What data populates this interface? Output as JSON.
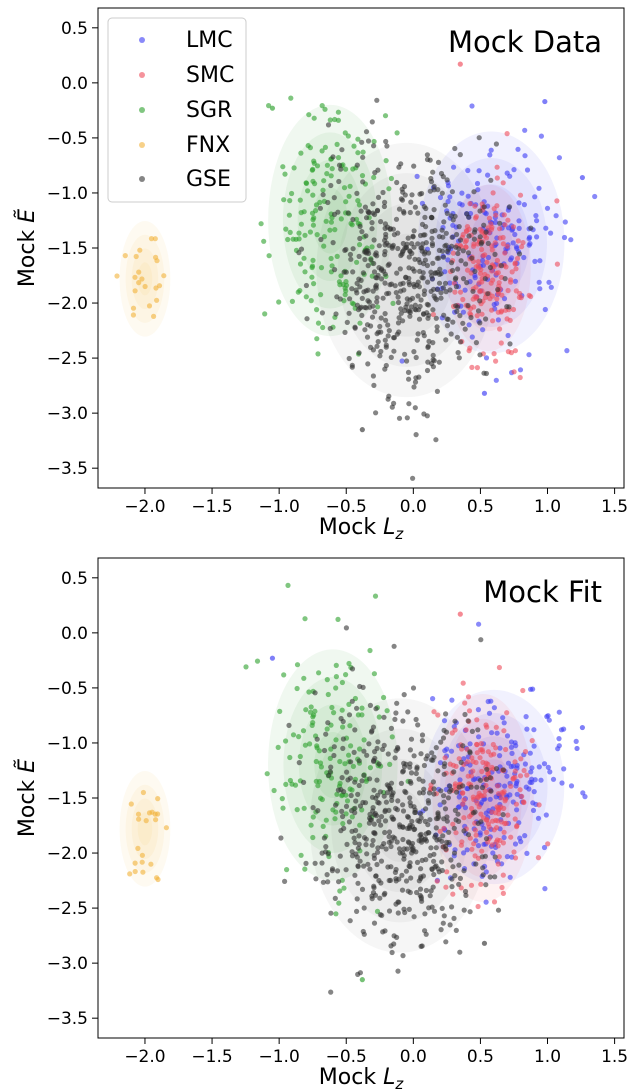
{
  "chart_data": [
    {
      "type": "scatter",
      "title": "Mock Data",
      "xlabel": "Mock L_z",
      "ylabel": "Mock Ẽ",
      "xlim": [
        -2.35,
        1.57
      ],
      "ylim": [
        -3.68,
        0.68
      ],
      "xticks": [
        "−2.0",
        "−1.5",
        "−1.0",
        "−0.5",
        "0.0",
        "0.5",
        "1.0",
        "1.5"
      ],
      "xtick_values": [
        -2.0,
        -1.5,
        -1.0,
        -0.5,
        0.0,
        0.5,
        1.0,
        1.5
      ],
      "yticks": [
        "0.5",
        "0.0",
        "−0.5",
        "−1.0",
        "−1.5",
        "−2.0",
        "−2.5",
        "−3.0",
        "−3.5"
      ],
      "ytick_values": [
        0.5,
        0.0,
        -0.5,
        -1.0,
        -1.5,
        -2.0,
        -2.5,
        -3.0,
        -3.5
      ],
      "legend_position": "top-left",
      "series": [
        {
          "name": "LMC",
          "color": "#3b3bf5",
          "center": [
            0.58,
            -1.45
          ],
          "spread": [
            0.26,
            0.48
          ],
          "count": 170
        },
        {
          "name": "SMC",
          "color": "#ef4b5a",
          "center": [
            0.56,
            -1.68
          ],
          "spread": [
            0.15,
            0.36
          ],
          "count": 180
        },
        {
          "name": "SGR",
          "color": "#2ca02c",
          "center": [
            -0.62,
            -1.25
          ],
          "spread": [
            0.22,
            0.5
          ],
          "count": 170
        },
        {
          "name": "FNX",
          "color": "#f2b23a",
          "center": [
            -2.0,
            -1.78
          ],
          "spread": [
            0.09,
            0.25
          ],
          "count": 22
        },
        {
          "name": "GSE",
          "color": "#333333",
          "center": [
            -0.05,
            -1.7
          ],
          "spread": [
            0.32,
            0.55
          ],
          "count": 520
        }
      ],
      "highlight_points": [
        [
          0.35,
          0.17
        ],
        [
          0.98,
          -0.17
        ],
        [
          1.26,
          -0.86
        ],
        [
          -1.05,
          -0.23
        ],
        [
          -0.38,
          -3.15
        ],
        [
          0.53,
          -2.82
        ]
      ]
    },
    {
      "type": "scatter",
      "title": "Mock Fit",
      "xlabel": "Mock L_z",
      "ylabel": "Mock Ẽ",
      "xlim": [
        -2.35,
        1.57
      ],
      "ylim": [
        -3.68,
        0.68
      ],
      "xticks": [
        "−2.0",
        "−1.5",
        "−1.0",
        "−0.5",
        "0.0",
        "0.5",
        "1.0",
        "1.5"
      ],
      "xtick_values": [
        -2.0,
        -1.5,
        -1.0,
        -0.5,
        0.0,
        0.5,
        1.0,
        1.5
      ],
      "yticks": [
        "0.5",
        "0.0",
        "−0.5",
        "−1.0",
        "−1.5",
        "−2.0",
        "−2.5",
        "−3.0",
        "−3.5"
      ],
      "ytick_values": [
        0.5,
        0.0,
        -0.5,
        -1.0,
        -1.5,
        -2.0,
        -2.5,
        -3.0,
        -3.5
      ],
      "series": [
        {
          "name": "LMC",
          "color": "#3b3bf5",
          "center": [
            0.6,
            -1.4
          ],
          "spread": [
            0.25,
            0.42
          ],
          "count": 200
        },
        {
          "name": "SMC",
          "color": "#ef4b5a",
          "center": [
            0.52,
            -1.5
          ],
          "spread": [
            0.18,
            0.45
          ],
          "count": 200
        },
        {
          "name": "SGR",
          "color": "#2ca02c",
          "center": [
            -0.6,
            -1.2
          ],
          "spread": [
            0.23,
            0.5
          ],
          "count": 150
        },
        {
          "name": "FNX",
          "color": "#f2b23a",
          "center": [
            -2.0,
            -1.78
          ],
          "spread": [
            0.09,
            0.25
          ],
          "count": 22
        },
        {
          "name": "GSE",
          "color": "#333333",
          "center": [
            -0.1,
            -1.75
          ],
          "spread": [
            0.32,
            0.55
          ],
          "count": 520
        }
      ],
      "highlight_points": [
        [
          0.35,
          0.17
        ],
        [
          -1.05,
          -0.23
        ],
        [
          1.26,
          -0.86
        ],
        [
          -0.38,
          -3.15
        ],
        [
          0.53,
          -2.82
        ],
        [
          1.22,
          -1.05
        ]
      ]
    }
  ]
}
